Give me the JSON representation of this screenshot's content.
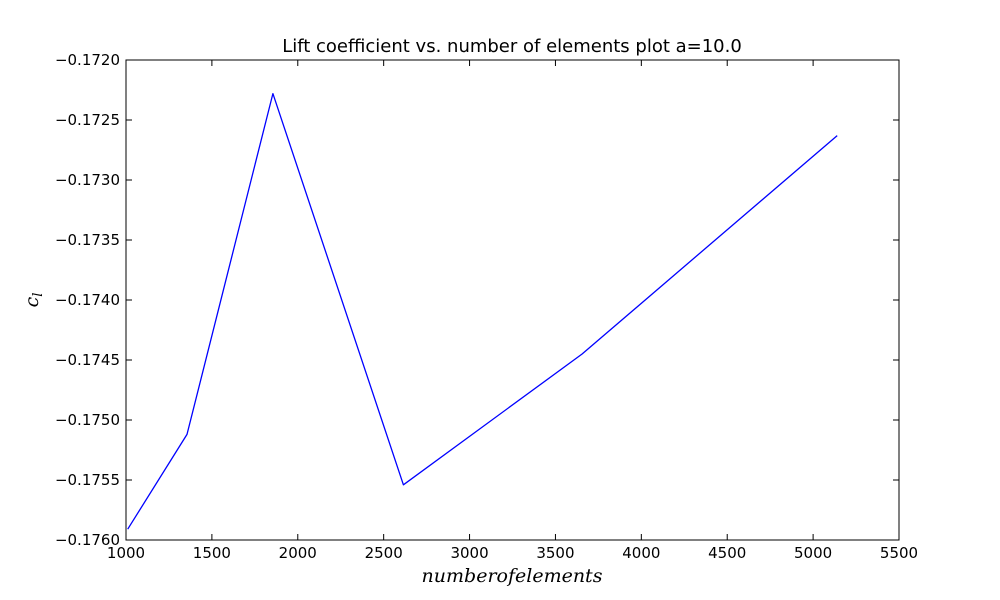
{
  "chart_data": {
    "type": "line",
    "title": "Lift coefficient vs. number of elements plot a=10.0",
    "xlabel": "numberofelements",
    "ylabel": "c",
    "ylabel_subscript": "l",
    "xlim": [
      1000,
      5500
    ],
    "ylim": [
      -0.176,
      -0.172
    ],
    "xticks": [
      1000,
      1500,
      2000,
      2500,
      3000,
      3500,
      4000,
      4500,
      5000,
      5500
    ],
    "xtick_labels": [
      "1000",
      "1500",
      "2000",
      "2500",
      "3000",
      "3500",
      "4000",
      "4500",
      "5000",
      "5500"
    ],
    "yticks": [
      -0.176,
      -0.1755,
      -0.175,
      -0.1745,
      -0.174,
      -0.1735,
      -0.173,
      -0.1725,
      -0.172
    ],
    "ytick_labels": [
      "−0.1760",
      "−0.1755",
      "−0.1750",
      "−0.1745",
      "−0.1740",
      "−0.1735",
      "−0.1730",
      "−0.1725",
      "−0.1720"
    ],
    "grid": false,
    "series": [
      {
        "color": "#0000ff",
        "x": [
          1010,
          1355,
          1855,
          2615,
          3655,
          5140
        ],
        "y": [
          -0.17591,
          -0.17512,
          -0.17228,
          -0.17554,
          -0.17445,
          -0.17263
        ]
      }
    ]
  }
}
